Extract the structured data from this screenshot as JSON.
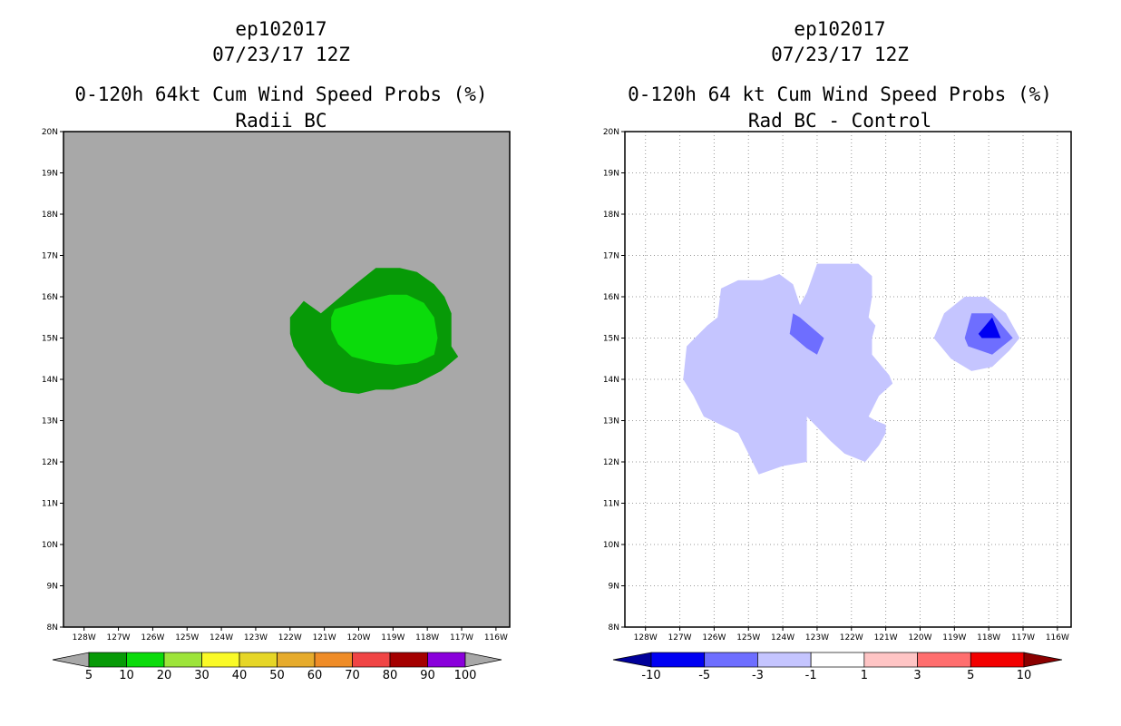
{
  "panels": [
    {
      "id": "left",
      "storm": "ep102017",
      "date": "07/23/17 12Z",
      "title": "0-120h 64kt Cum Wind Speed Probs (%)",
      "subtitle": "Radii BC"
    },
    {
      "id": "right",
      "storm": "ep102017",
      "date": "07/23/17 12Z",
      "title": "0-120h 64 kt Cum Wind Speed Probs (%)",
      "subtitle": "Rad BC - Control"
    }
  ],
  "chart_data": [
    {
      "type": "heatmap",
      "title": "0-120h 64kt Cum Wind Speed Probs (%)",
      "subtitle": "Radii BC",
      "x_range_lon": [
        -128.6,
        -115.6
      ],
      "y_range_lat": [
        8,
        20
      ],
      "x_ticks": [
        "128W",
        "127W",
        "126W",
        "125W",
        "124W",
        "123W",
        "122W",
        "121W",
        "120W",
        "119W",
        "118W",
        "117W",
        "116W"
      ],
      "y_ticks": [
        "8N",
        "9N",
        "10N",
        "11N",
        "12N",
        "13N",
        "14N",
        "15N",
        "16N",
        "17N",
        "18N",
        "19N",
        "20N"
      ],
      "grid": false,
      "background_color": "#a8a8a8",
      "contours": [
        {
          "level": "5-10",
          "color": "#079a07",
          "points": [
            [
              -121.1,
              15.6
            ],
            [
              -120.1,
              16.3
            ],
            [
              -119.5,
              16.7
            ],
            [
              -118.8,
              16.7
            ],
            [
              -118.3,
              16.6
            ],
            [
              -117.8,
              16.3
            ],
            [
              -117.5,
              16.0
            ],
            [
              -117.3,
              15.6
            ],
            [
              -117.3,
              15.1
            ],
            [
              -117.3,
              14.8
            ],
            [
              -117.1,
              14.55
            ],
            [
              -117.6,
              14.2
            ],
            [
              -118.3,
              13.9
            ],
            [
              -119.0,
              13.75
            ],
            [
              -119.5,
              13.75
            ],
            [
              -120.0,
              13.65
            ],
            [
              -120.5,
              13.7
            ],
            [
              -121.0,
              13.9
            ],
            [
              -121.5,
              14.3
            ],
            [
              -121.9,
              14.8
            ],
            [
              -122.0,
              15.1
            ],
            [
              -122.0,
              15.5
            ],
            [
              -121.6,
              15.9
            ]
          ]
        },
        {
          "level": "10-20",
          "color": "#0bdb0b",
          "points": [
            [
              -120.7,
              15.7
            ],
            [
              -119.9,
              15.9
            ],
            [
              -119.1,
              16.05
            ],
            [
              -118.6,
              16.05
            ],
            [
              -118.1,
              15.85
            ],
            [
              -117.8,
              15.5
            ],
            [
              -117.7,
              15.0
            ],
            [
              -117.8,
              14.6
            ],
            [
              -118.3,
              14.4
            ],
            [
              -118.9,
              14.35
            ],
            [
              -119.5,
              14.4
            ],
            [
              -120.2,
              14.55
            ],
            [
              -120.6,
              14.85
            ],
            [
              -120.8,
              15.2
            ],
            [
              -120.8,
              15.5
            ]
          ]
        }
      ],
      "colorbar": {
        "labels": [
          "5",
          "10",
          "20",
          "30",
          "40",
          "50",
          "60",
          "70",
          "80",
          "90",
          "100"
        ],
        "colors": [
          "#079a07",
          "#0bdb0b",
          "#9de43a",
          "#fafa27",
          "#e6d627",
          "#e6ab2c",
          "#ef8c27",
          "#f04545",
          "#a40000",
          "#8a00db"
        ],
        "low_end_color": "#a8a8a8",
        "high_end_color": "#a8a8a8"
      }
    },
    {
      "type": "heatmap",
      "title": "0-120h 64 kt Cum Wind Speed Probs (%)",
      "subtitle": "Rad BC - Control",
      "x_range_lon": [
        -128.6,
        -115.6
      ],
      "y_range_lat": [
        8,
        20
      ],
      "x_ticks": [
        "128W",
        "127W",
        "126W",
        "125W",
        "124W",
        "123W",
        "122W",
        "121W",
        "120W",
        "119W",
        "118W",
        "117W",
        "116W"
      ],
      "y_ticks": [
        "8N",
        "9N",
        "10N",
        "11N",
        "12N",
        "13N",
        "14N",
        "15N",
        "16N",
        "17N",
        "18N",
        "19N",
        "20N"
      ],
      "grid": true,
      "background_color": "#ffffff",
      "contours": [
        {
          "level": "-3 to -1",
          "color": "#c5c5ff",
          "points": [
            [
              -124.6,
              16.4
            ],
            [
              -124.1,
              16.55
            ],
            [
              -123.7,
              16.3
            ],
            [
              -123.5,
              15.8
            ],
            [
              -123.3,
              16.1
            ],
            [
              -123.0,
              16.8
            ],
            [
              -122.5,
              16.8
            ],
            [
              -121.8,
              16.8
            ],
            [
              -121.4,
              16.5
            ],
            [
              -121.4,
              16.0
            ],
            [
              -121.5,
              15.5
            ],
            [
              -121.3,
              15.3
            ],
            [
              -121.4,
              15.0
            ],
            [
              -121.4,
              14.6
            ],
            [
              -120.9,
              14.1
            ],
            [
              -120.8,
              13.9
            ],
            [
              -121.2,
              13.6
            ],
            [
              -121.5,
              13.1
            ],
            [
              -121.3,
              13.0
            ],
            [
              -121.0,
              12.9
            ],
            [
              -121.0,
              12.7
            ],
            [
              -121.2,
              12.4
            ],
            [
              -121.6,
              12.0
            ],
            [
              -122.2,
              12.2
            ],
            [
              -122.6,
              12.5
            ],
            [
              -123.3,
              13.1
            ],
            [
              -123.3,
              12.0
            ],
            [
              -124.0,
              11.9
            ],
            [
              -124.7,
              11.7
            ],
            [
              -125.3,
              12.7
            ],
            [
              -126.3,
              13.1
            ],
            [
              -126.6,
              13.6
            ],
            [
              -126.9,
              14.0
            ],
            [
              -126.8,
              14.8
            ],
            [
              -126.2,
              15.3
            ],
            [
              -125.9,
              15.5
            ],
            [
              -125.8,
              16.2
            ],
            [
              -125.3,
              16.4
            ]
          ]
        },
        {
          "level": "-5 to -3",
          "color": "#6e6eff",
          "points": [
            [
              -123.7,
              15.6
            ],
            [
              -123.5,
              15.5
            ],
            [
              -122.8,
              15.0
            ],
            [
              -123.0,
              14.6
            ],
            [
              -123.3,
              14.75
            ],
            [
              -123.8,
              15.1
            ]
          ]
        },
        {
          "level": "-3 to -1",
          "color": "#c5c5ff",
          "points": [
            [
              -119.3,
              15.6
            ],
            [
              -118.7,
              16.0
            ],
            [
              -118.1,
              16.0
            ],
            [
              -117.5,
              15.6
            ],
            [
              -117.1,
              15.0
            ],
            [
              -117.4,
              14.7
            ],
            [
              -117.9,
              14.3
            ],
            [
              -118.5,
              14.2
            ],
            [
              -119.1,
              14.5
            ],
            [
              -119.4,
              14.8
            ],
            [
              -119.6,
              15.0
            ]
          ]
        },
        {
          "level": "-5 to -3",
          "color": "#6e6eff",
          "points": [
            [
              -118.5,
              15.6
            ],
            [
              -117.9,
              15.6
            ],
            [
              -117.3,
              15.0
            ],
            [
              -117.9,
              14.6
            ],
            [
              -118.6,
              14.8
            ],
            [
              -118.7,
              15.0
            ]
          ]
        },
        {
          "level": "-10 to -5",
          "color": "#0000f2",
          "points": [
            [
              -118.3,
              15.1
            ],
            [
              -117.9,
              15.5
            ],
            [
              -117.65,
              15.0
            ],
            [
              -118.2,
              15.0
            ]
          ]
        }
      ],
      "colorbar": {
        "labels": [
          "-10",
          "-5",
          "-3",
          "-1",
          "1",
          "3",
          "5",
          "10"
        ],
        "colors": [
          "#0000f2",
          "#6e6eff",
          "#c5c5ff",
          "#ffffff",
          "#ffc5c5",
          "#ff6e6e",
          "#f20000"
        ],
        "low_end_color": "#00009a",
        "high_end_color": "#8b0000"
      }
    }
  ]
}
